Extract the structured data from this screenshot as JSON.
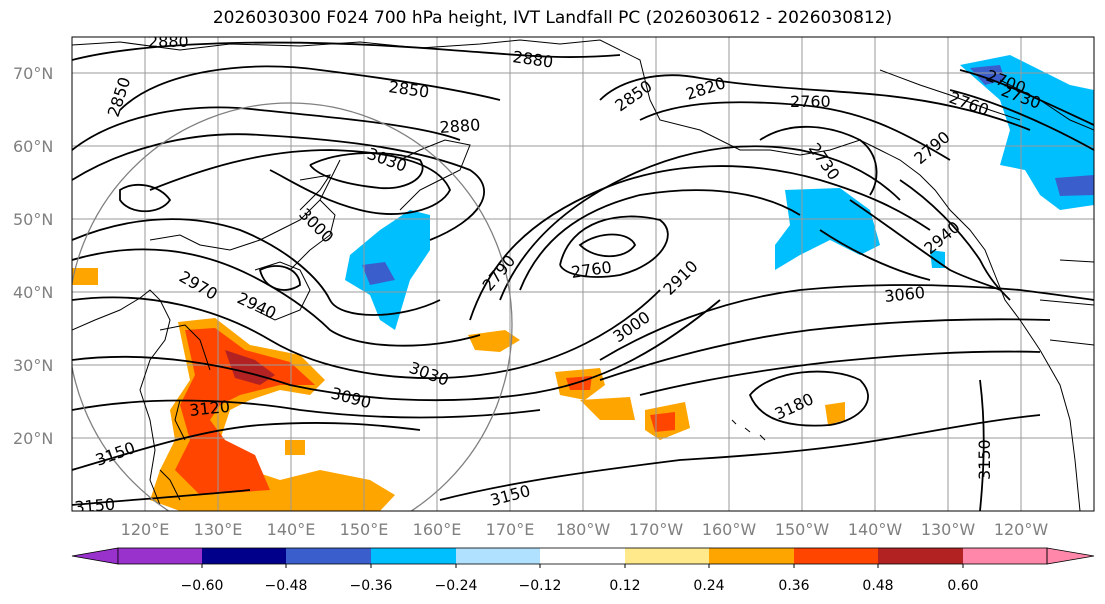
{
  "title": "2026030300 F024 700 hPa height, IVT Landfall PC (2026030612 - 2026030812)",
  "lat_labels": [
    "70°N",
    "60°N",
    "50°N",
    "40°N",
    "30°N",
    "20°N"
  ],
  "lon_labels": [
    "120°E",
    "130°E",
    "140°E",
    "150°E",
    "160°E",
    "170°E",
    "180°W",
    "170°W",
    "160°W",
    "150°W",
    "140°W",
    "130°W",
    "120°W"
  ],
  "contour_labels": [
    "2880",
    "2880",
    "2850",
    "2850",
    "2820",
    "2850",
    "2760",
    "2700",
    "2730",
    "2760",
    "2880",
    "3030",
    "3000",
    "2730",
    "2790",
    "2760",
    "2910",
    "2790",
    "2970",
    "2940",
    "2940",
    "3060",
    "3000",
    "3030",
    "3090",
    "3120",
    "3180",
    "3150",
    "3150",
    "3150",
    "3150"
  ],
  "colorbar": {
    "ticks": [
      "−0.60",
      "−0.48",
      "−0.36",
      "−0.24",
      "−0.12",
      "0.12",
      "0.24",
      "0.36",
      "0.48",
      "0.60"
    ],
    "colors": [
      "#9932cc",
      "#00008b",
      "#3a5fcd",
      "#00bfff",
      "#b0e2ff",
      "#ffffff",
      "#ffe98a",
      "#ffa500",
      "#ff4500",
      "#b22222",
      "#ff88aa"
    ]
  }
}
